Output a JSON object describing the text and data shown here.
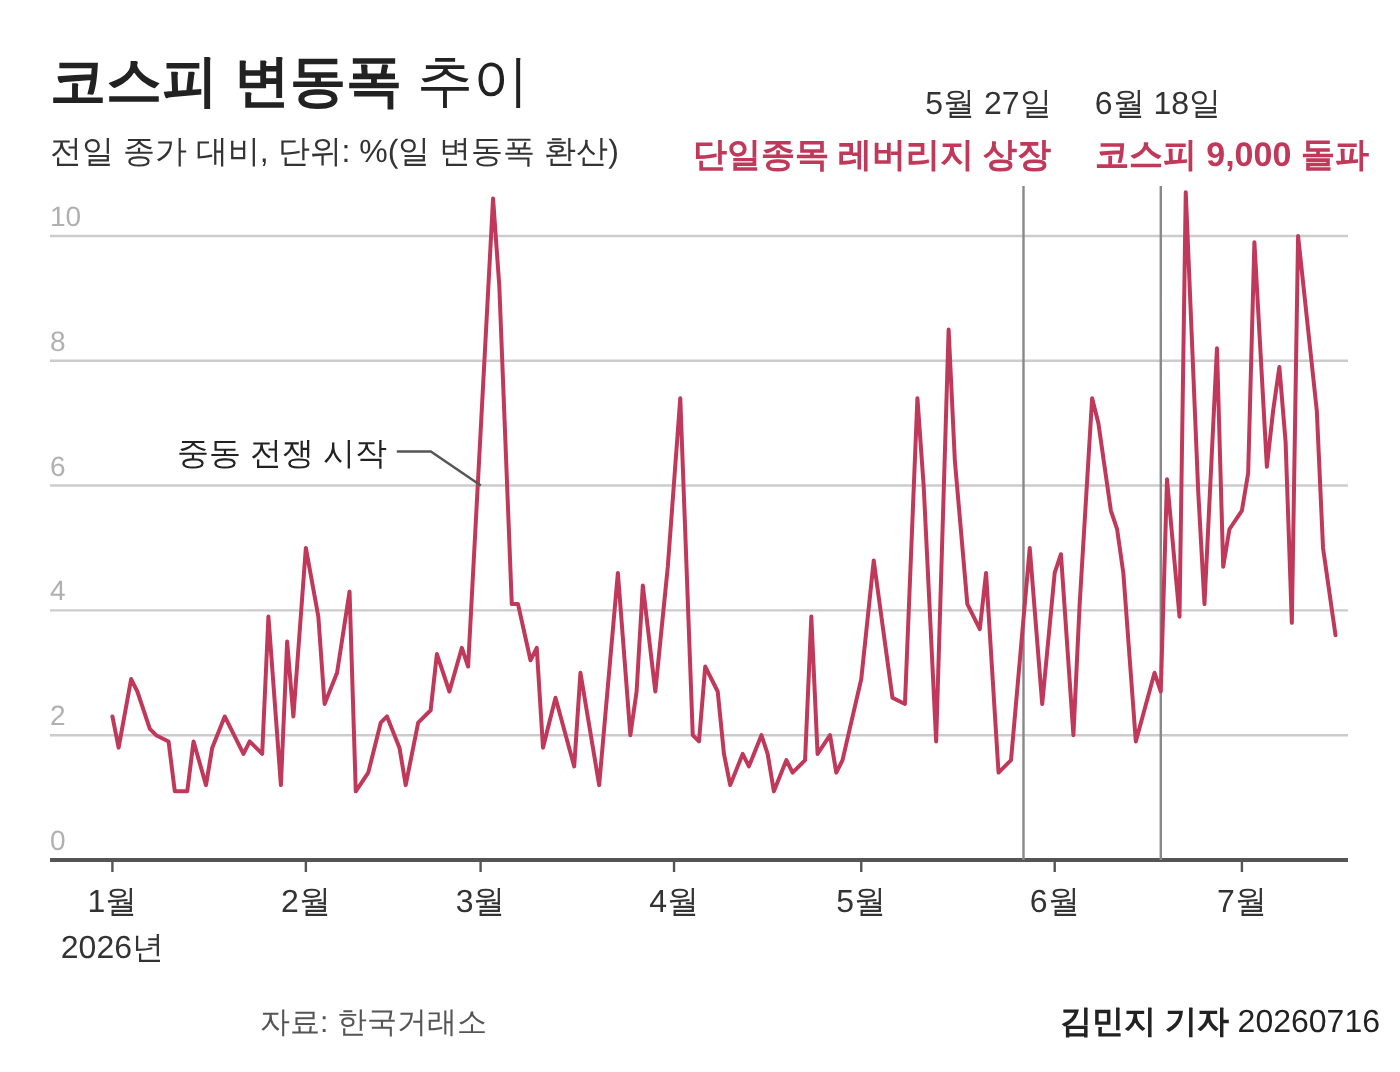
{
  "chart_data": {
    "type": "line",
    "title": "**코스피 변동폭** 추이",
    "subtitle": "전일 종가 대비, 단위: %(일 변동폭 환산)",
    "x": [
      "2026-01-01",
      "2026-01-02",
      "2026-01-04",
      "2026-01-05",
      "2026-01-07",
      "2026-01-08",
      "2026-01-10",
      "2026-01-11",
      "2026-01-13",
      "2026-01-14",
      "2026-01-16",
      "2026-01-17",
      "2026-01-19",
      "2026-01-20",
      "2026-01-22",
      "2026-01-23",
      "2026-01-25",
      "2026-01-26",
      "2026-01-28",
      "2026-01-29",
      "2026-01-30",
      "2026-02-01",
      "2026-02-03",
      "2026-02-04",
      "2026-02-06",
      "2026-02-08",
      "2026-02-09",
      "2026-02-11",
      "2026-02-13",
      "2026-02-14",
      "2026-02-16",
      "2026-02-17",
      "2026-02-19",
      "2026-02-21",
      "2026-02-22",
      "2026-02-24",
      "2026-02-26",
      "2026-02-27",
      "2026-03-03",
      "2026-03-04",
      "2026-03-06",
      "2026-03-07",
      "2026-03-09",
      "2026-03-10",
      "2026-03-11",
      "2026-03-13",
      "2026-03-16",
      "2026-03-17",
      "2026-03-20",
      "2026-03-23",
      "2026-03-25",
      "2026-03-26",
      "2026-03-27",
      "2026-03-29",
      "2026-03-31",
      "2026-04-02",
      "2026-04-04",
      "2026-04-05",
      "2026-04-06",
      "2026-04-08",
      "2026-04-09",
      "2026-04-10",
      "2026-04-12",
      "2026-04-13",
      "2026-04-15",
      "2026-04-16",
      "2026-04-17",
      "2026-04-19",
      "2026-04-20",
      "2026-04-22",
      "2026-04-23",
      "2026-04-24",
      "2026-04-26",
      "2026-04-27",
      "2026-04-28",
      "2026-05-01",
      "2026-05-03",
      "2026-05-06",
      "2026-05-08",
      "2026-05-10",
      "2026-05-11",
      "2026-05-13",
      "2026-05-15",
      "2026-05-16",
      "2026-05-18",
      "2026-05-20",
      "2026-05-21",
      "2026-05-23",
      "2026-05-25",
      "2026-05-28",
      "2026-05-30",
      "2026-06-01",
      "2026-06-02",
      "2026-06-04",
      "2026-06-05",
      "2026-06-07",
      "2026-06-08",
      "2026-06-10",
      "2026-06-11",
      "2026-06-12",
      "2026-06-14",
      "2026-06-17",
      "2026-06-18",
      "2026-06-19",
      "2026-06-21",
      "2026-06-22",
      "2026-06-24",
      "2026-06-25",
      "2026-06-27",
      "2026-06-28",
      "2026-06-29",
      "2026-07-01",
      "2026-07-02",
      "2026-07-03",
      "2026-07-05",
      "2026-07-06",
      "2026-07-07",
      "2026-07-08",
      "2026-07-09",
      "2026-07-10",
      "2026-07-13",
      "2026-07-14",
      "2026-07-16"
    ],
    "series": [
      {
        "color": "#c0395a",
        "values": [
          2.3,
          1.8,
          2.9,
          2.7,
          2.1,
          2.0,
          1.9,
          1.1,
          1.1,
          1.9,
          1.2,
          1.8,
          2.3,
          2.1,
          1.7,
          1.9,
          1.7,
          3.9,
          1.2,
          3.5,
          2.3,
          5.0,
          3.9,
          2.5,
          3.0,
          4.3,
          1.1,
          1.4,
          2.2,
          2.3,
          1.8,
          1.2,
          2.2,
          2.4,
          3.3,
          2.7,
          3.4,
          3.1,
          10.6,
          9.2,
          4.1,
          4.1,
          3.2,
          3.4,
          1.8,
          2.6,
          1.5,
          3.0,
          1.2,
          4.6,
          2.0,
          2.7,
          4.4,
          2.7,
          4.7,
          7.4,
          2.0,
          1.9,
          3.1,
          2.7,
          1.7,
          1.2,
          1.7,
          1.5,
          2.0,
          1.7,
          1.1,
          1.6,
          1.4,
          1.6,
          3.9,
          1.7,
          2.0,
          1.4,
          1.6,
          2.9,
          4.8,
          2.6,
          2.5,
          7.4,
          6.0,
          1.9,
          8.5,
          6.4,
          4.1,
          3.7,
          4.6,
          1.4,
          1.6,
          5.0,
          2.5,
          4.6,
          4.9,
          2.0,
          4.1,
          7.4,
          7.0,
          5.6,
          5.3,
          4.6,
          1.9,
          3.0,
          2.7,
          6.1,
          3.9,
          10.7,
          5.9,
          4.1,
          8.2,
          4.7,
          5.3,
          5.6,
          6.2,
          9.9,
          6.3,
          7.2,
          7.9,
          6.7,
          3.8,
          10.0,
          7.2,
          5.0,
          3.6
        ]
      }
    ],
    "xlim": [
      "2025-12-22",
      "2026-07-18"
    ],
    "xticks": [
      {
        "value": "2026-01-01",
        "label": "1월"
      },
      {
        "value": "2026-02-01",
        "label": "2월"
      },
      {
        "value": "2026-03-01",
        "label": "3월"
      },
      {
        "value": "2026-04-01",
        "label": "4월"
      },
      {
        "value": "2026-05-01",
        "label": "5월"
      },
      {
        "value": "2026-06-01",
        "label": "6월"
      },
      {
        "value": "2026-07-01",
        "label": "7월"
      }
    ],
    "ylim": [
      0,
      10.8
    ],
    "yticks": [
      0,
      2,
      4,
      6,
      8,
      10
    ],
    "grid": "y",
    "ref_lines": [
      {
        "axis": "x",
        "value": "2026-05-27",
        "label": "5월 27일",
        "color": "#888888"
      },
      {
        "axis": "x",
        "value": "2026-06-18",
        "label": "6월 18일",
        "color": "#888888"
      }
    ],
    "annotations": [
      "2026년",
      "자료: 한국거래소",
      "**김민지 기자** 20260716",
      "단일종목 레버리지 상장",
      "코스피 9,000 돌파",
      {
        "text": "중동 전쟁 시작",
        "x": "2026-03-02",
        "y": 6
      }
    ]
  }
}
